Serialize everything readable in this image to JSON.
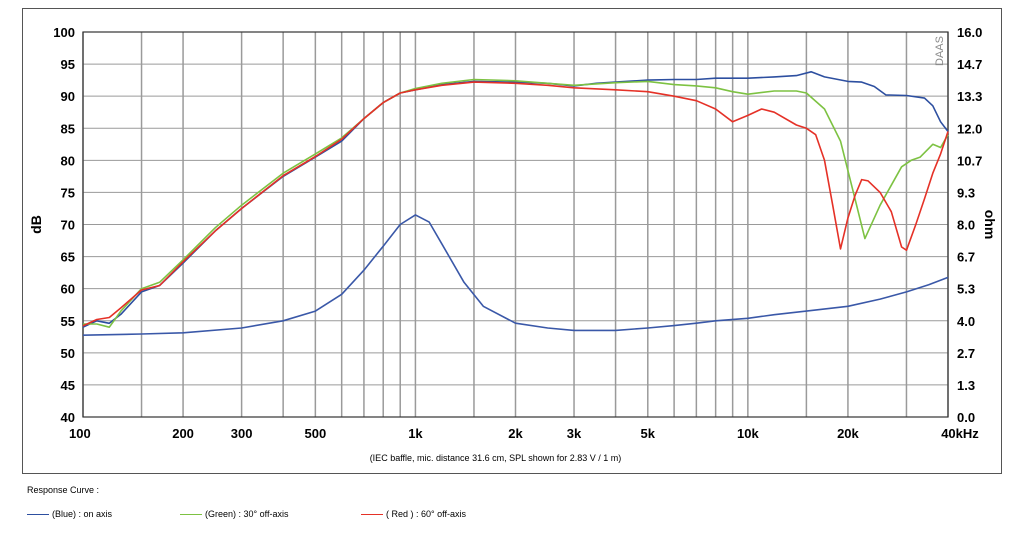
{
  "chart_data": {
    "type": "line",
    "x_scale": "log",
    "x_ticks": [
      {
        "value": 100,
        "label": "100"
      },
      {
        "value": 200,
        "label": "200"
      },
      {
        "value": 300,
        "label": "300"
      },
      {
        "value": 500,
        "label": "500"
      },
      {
        "value": 1000,
        "label": "1k"
      },
      {
        "value": 2000,
        "label": "2k"
      },
      {
        "value": 3000,
        "label": "3k"
      },
      {
        "value": 5000,
        "label": "5k"
      },
      {
        "value": 10000,
        "label": "10k"
      },
      {
        "value": 20000,
        "label": "20k"
      },
      {
        "value": 40000,
        "label": "40kHz"
      }
    ],
    "x_minor_grid": [
      150,
      400,
      600,
      700,
      800,
      900,
      1500,
      4000,
      6000,
      7000,
      8000,
      9000,
      15000,
      30000
    ],
    "xlim": [
      100,
      40000
    ],
    "y_left": {
      "label": "dB",
      "lim": [
        40,
        100
      ],
      "ticks": [
        "40",
        "45",
        "50",
        "55",
        "60",
        "65",
        "70",
        "75",
        "80",
        "85",
        "90",
        "95",
        "100"
      ]
    },
    "y_right": {
      "label": "ohm",
      "lim": [
        0,
        16
      ],
      "ticks": [
        "0.0",
        "1.3",
        "2.7",
        "4.0",
        "5.3",
        "6.7",
        "8.0",
        "9.3",
        "10.7",
        "12.0",
        "13.3",
        "14.7",
        "16.0"
      ]
    },
    "grid": true,
    "watermark": "DAAS",
    "caption": "(IEC baffle, mic. distance 31.6 cm, SPL shown for 2.83 V / 1 m)",
    "series": [
      {
        "name": "(Blue)  : on axis",
        "color": "#2d4fa0",
        "axis": "left",
        "points": [
          [
            100,
            54
          ],
          [
            110,
            55
          ],
          [
            120,
            54.6
          ],
          [
            130,
            56
          ],
          [
            150,
            59.5
          ],
          [
            170,
            60.5
          ],
          [
            200,
            64
          ],
          [
            250,
            69
          ],
          [
            300,
            72.5
          ],
          [
            400,
            77.5
          ],
          [
            500,
            80.5
          ],
          [
            600,
            83
          ],
          [
            700,
            86.5
          ],
          [
            800,
            89
          ],
          [
            900,
            90.5
          ],
          [
            1000,
            91
          ],
          [
            1200,
            91.8
          ],
          [
            1500,
            92.3
          ],
          [
            2000,
            92.2
          ],
          [
            2500,
            92
          ],
          [
            3000,
            91.6
          ],
          [
            3500,
            92
          ],
          [
            4000,
            92.2
          ],
          [
            5000,
            92.5
          ],
          [
            6000,
            92.6
          ],
          [
            7000,
            92.6
          ],
          [
            8000,
            92.8
          ],
          [
            10000,
            92.8
          ],
          [
            12000,
            93
          ],
          [
            14000,
            93.2
          ],
          [
            15500,
            93.8
          ],
          [
            17000,
            93
          ],
          [
            20000,
            92.3
          ],
          [
            22000,
            92.2
          ],
          [
            24000,
            91.5
          ],
          [
            26000,
            90.2
          ],
          [
            30000,
            90.1
          ],
          [
            34000,
            89.7
          ],
          [
            36000,
            88.5
          ],
          [
            38000,
            86
          ],
          [
            40000,
            84.5
          ]
        ]
      },
      {
        "name": "(Green) : 30° off-axis",
        "color": "#7dc242",
        "axis": "left",
        "points": [
          [
            100,
            54.5
          ],
          [
            110,
            54.5
          ],
          [
            120,
            54
          ],
          [
            130,
            56.5
          ],
          [
            150,
            60
          ],
          [
            170,
            61
          ],
          [
            200,
            64.5
          ],
          [
            250,
            69.5
          ],
          [
            300,
            73
          ],
          [
            400,
            78
          ],
          [
            500,
            81
          ],
          [
            600,
            83.5
          ],
          [
            700,
            86.5
          ],
          [
            800,
            89
          ],
          [
            900,
            90.5
          ],
          [
            1000,
            91.2
          ],
          [
            1200,
            92
          ],
          [
            1500,
            92.6
          ],
          [
            2000,
            92.4
          ],
          [
            2500,
            92
          ],
          [
            3000,
            91.7
          ],
          [
            4000,
            92.1
          ],
          [
            5000,
            92.3
          ],
          [
            6000,
            91.8
          ],
          [
            7000,
            91.6
          ],
          [
            8000,
            91.3
          ],
          [
            9000,
            90.7
          ],
          [
            10000,
            90.3
          ],
          [
            12000,
            90.8
          ],
          [
            14000,
            90.8
          ],
          [
            15000,
            90.5
          ],
          [
            17000,
            88
          ],
          [
            19000,
            83
          ],
          [
            21000,
            74
          ],
          [
            22500,
            67.8
          ],
          [
            25000,
            73
          ],
          [
            29000,
            79
          ],
          [
            31000,
            80
          ],
          [
            33000,
            80.5
          ],
          [
            36000,
            82.5
          ],
          [
            38000,
            82
          ],
          [
            40000,
            84
          ]
        ]
      },
      {
        "name": "( Red ) : 60° off-axis",
        "color": "#e53127",
        "axis": "left",
        "points": [
          [
            100,
            54.2
          ],
          [
            110,
            55.2
          ],
          [
            120,
            55.5
          ],
          [
            130,
            57
          ],
          [
            150,
            59.8
          ],
          [
            170,
            60.5
          ],
          [
            200,
            64.2
          ],
          [
            250,
            69
          ],
          [
            300,
            72.5
          ],
          [
            400,
            77.6
          ],
          [
            500,
            80.6
          ],
          [
            600,
            83.3
          ],
          [
            700,
            86.5
          ],
          [
            800,
            89
          ],
          [
            900,
            90.5
          ],
          [
            1000,
            91
          ],
          [
            1200,
            91.7
          ],
          [
            1500,
            92.2
          ],
          [
            2000,
            92
          ],
          [
            2500,
            91.7
          ],
          [
            3000,
            91.3
          ],
          [
            4000,
            91
          ],
          [
            5000,
            90.7
          ],
          [
            6000,
            90
          ],
          [
            7000,
            89.3
          ],
          [
            8000,
            88
          ],
          [
            9000,
            86
          ],
          [
            10000,
            87
          ],
          [
            11000,
            88
          ],
          [
            12000,
            87.5
          ],
          [
            14000,
            85.5
          ],
          [
            15000,
            85
          ],
          [
            16000,
            84
          ],
          [
            17000,
            80
          ],
          [
            18000,
            73
          ],
          [
            19000,
            66.2
          ],
          [
            20000,
            71
          ],
          [
            21000,
            74.5
          ],
          [
            22000,
            77
          ],
          [
            23000,
            76.8
          ],
          [
            25000,
            75
          ],
          [
            27000,
            72
          ],
          [
            29000,
            66.5
          ],
          [
            30000,
            66
          ],
          [
            32000,
            70
          ],
          [
            34000,
            74
          ],
          [
            36000,
            78
          ],
          [
            38000,
            81
          ],
          [
            40000,
            84.5
          ]
        ]
      },
      {
        "name": "impedance",
        "color": "#3a58a8",
        "axis": "right",
        "points": [
          [
            100,
            3.4
          ],
          [
            150,
            3.45
          ],
          [
            200,
            3.5
          ],
          [
            300,
            3.7
          ],
          [
            400,
            4.0
          ],
          [
            500,
            4.4
          ],
          [
            600,
            5.1
          ],
          [
            700,
            6.1
          ],
          [
            800,
            7.1
          ],
          [
            900,
            8.0
          ],
          [
            1000,
            8.4
          ],
          [
            1100,
            8.1
          ],
          [
            1200,
            7.2
          ],
          [
            1400,
            5.6
          ],
          [
            1600,
            4.6
          ],
          [
            2000,
            3.9
          ],
          [
            2500,
            3.7
          ],
          [
            3000,
            3.6
          ],
          [
            4000,
            3.6
          ],
          [
            5000,
            3.7
          ],
          [
            6000,
            3.8
          ],
          [
            7000,
            3.9
          ],
          [
            8000,
            4.0
          ],
          [
            10000,
            4.1
          ],
          [
            12000,
            4.25
          ],
          [
            15000,
            4.4
          ],
          [
            20000,
            4.6
          ],
          [
            25000,
            4.9
          ],
          [
            30000,
            5.2
          ],
          [
            35000,
            5.5
          ],
          [
            40000,
            5.8
          ]
        ]
      }
    ]
  },
  "legend": {
    "title": "Response Curve :",
    "items": [
      {
        "label": "(Blue)  : on axis",
        "color": "#2d4fa0"
      },
      {
        "label": "(Green) : 30° off-axis",
        "color": "#7dc242"
      },
      {
        "label": "( Red ) : 60° off-axis",
        "color": "#e53127"
      }
    ]
  }
}
